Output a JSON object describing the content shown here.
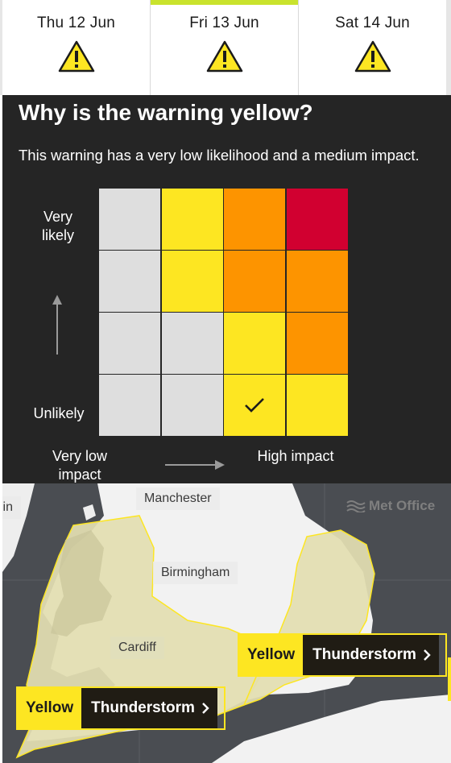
{
  "tabs": [
    {
      "label": "Thu 12 Jun",
      "icon": "warning-triangle-icon",
      "active": false
    },
    {
      "label": "Fri 13 Jun",
      "icon": "warning-triangle-icon",
      "active": true
    },
    {
      "label": "Sat 14 Jun",
      "icon": "warning-triangle-icon",
      "active": false
    }
  ],
  "panel": {
    "title": "Why is the warning yellow?",
    "description": "This warning has a very low likelihood and a medium impact.",
    "likelihood_high": "Very likely",
    "likelihood_low": "Unlikely",
    "impact_low": "Very low impact",
    "impact_high": "High impact",
    "matrix": [
      [
        "grey",
        "yellow",
        "orange",
        "red"
      ],
      [
        "grey",
        "yellow",
        "orange",
        "orange"
      ],
      [
        "grey",
        "grey",
        "yellow",
        "orange"
      ],
      [
        "grey",
        "grey",
        "yellow",
        "yellow"
      ]
    ],
    "selected_cell": {
      "likelihood": "Unlikely",
      "impact_level": 3
    },
    "colors": {
      "grey": "#dedede",
      "yellow": "#fde622",
      "orange": "#fd9400",
      "red": "#d10030",
      "panel_bg": "#252525",
      "active_tab": "#c9e32d"
    }
  },
  "map": {
    "cities": {
      "dublin": "lin",
      "manchester": "Manchester",
      "birmingham": "Birmingham",
      "cardiff": "Cardiff"
    },
    "brand": "Met Office",
    "warnings": [
      {
        "level": "Yellow",
        "type": "Thunderstorm"
      },
      {
        "level": "Yellow",
        "type": "Thunderstorm"
      }
    ]
  }
}
